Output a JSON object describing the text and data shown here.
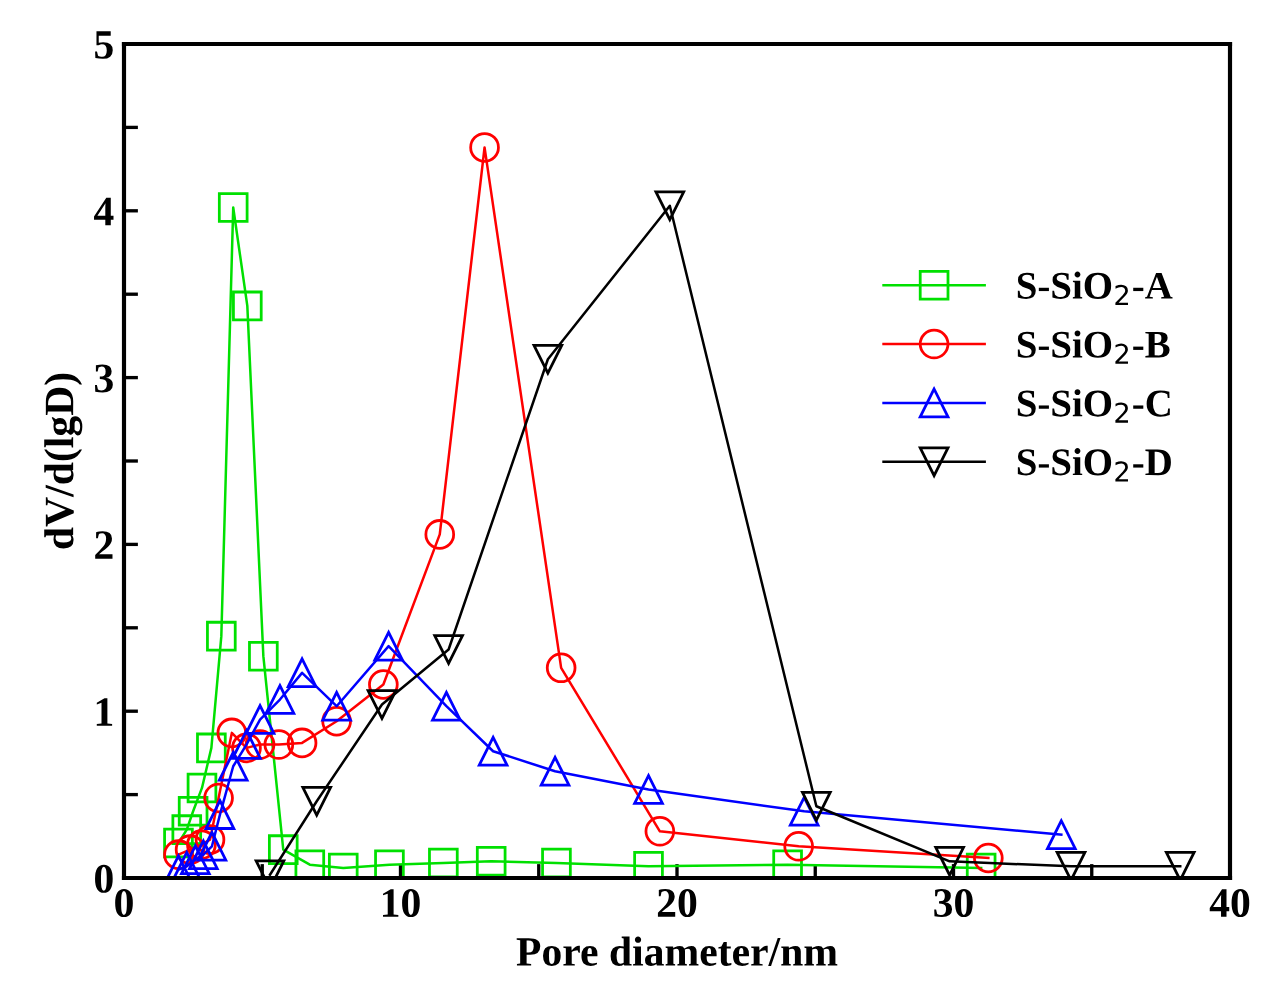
{
  "chart_data": {
    "type": "line",
    "xlabel": "Pore diameter/nm",
    "ylabel": "dV/d(lgD)",
    "xlim": [
      0,
      40
    ],
    "ylim": [
      0,
      5
    ],
    "xticks": [
      0,
      {
        "value": 5,
        "label": null
      },
      10,
      {
        "value": 15,
        "label": null
      },
      20,
      {
        "value": 25,
        "label": null
      },
      30,
      {
        "value": 35,
        "label": null
      },
      40
    ],
    "yticks": [
      0,
      {
        "value": 0.5,
        "label": null
      },
      1,
      {
        "value": 1.5,
        "label": null
      },
      2,
      {
        "value": 2.5,
        "label": null
      },
      3,
      {
        "value": 3.5,
        "label": null
      },
      4,
      {
        "value": 4.5,
        "label": null
      },
      5
    ],
    "grid": false,
    "legend": "right",
    "line_style": "solid",
    "series": [
      {
        "name": "S-SiO$_{2}$-A",
        "color": "#00e000",
        "marker": "square",
        "x": [
          1.97,
          2.27,
          2.5,
          2.82,
          3.16,
          3.52,
          3.95,
          4.46,
          5.04,
          5.76,
          6.72,
          7.93,
          9.6,
          11.55,
          13.28,
          15.64,
          18.97,
          24.0,
          31.0
        ],
        "values": [
          0.21,
          0.29,
          0.4,
          0.54,
          0.78,
          1.45,
          4.02,
          3.43,
          1.33,
          0.17,
          0.08,
          0.06,
          0.08,
          0.09,
          0.1,
          0.09,
          0.07,
          0.08,
          0.06
        ]
      },
      {
        "name": "S-SiO$_{2}$-B",
        "color": "#ff0000",
        "marker": "circle",
        "x": [
          1.97,
          2.39,
          2.8,
          3.11,
          3.42,
          3.9,
          4.43,
          4.92,
          5.6,
          6.44,
          7.69,
          9.38,
          11.42,
          13.04,
          15.81,
          19.38,
          24.4,
          31.26
        ],
        "values": [
          0.14,
          0.17,
          0.2,
          0.23,
          0.48,
          0.87,
          0.78,
          0.8,
          0.8,
          0.81,
          0.94,
          1.16,
          2.06,
          4.38,
          1.26,
          0.28,
          0.19,
          0.12
        ]
      },
      {
        "name": "S-SiO$_{2}$-C",
        "color": "#0000ff",
        "marker": "triangle",
        "x": [
          1.97,
          2.27,
          2.58,
          2.87,
          3.18,
          3.47,
          3.95,
          4.43,
          4.92,
          5.64,
          6.44,
          7.69,
          9.57,
          11.66,
          13.35,
          15.59,
          18.97,
          24.6,
          33.9
        ],
        "values": [
          0.05,
          0.07,
          0.11,
          0.14,
          0.19,
          0.38,
          0.67,
          0.8,
          0.95,
          1.07,
          1.23,
          1.03,
          1.39,
          1.03,
          0.76,
          0.64,
          0.53,
          0.4,
          0.26
        ]
      },
      {
        "name": "S-SiO$_{2}$-D",
        "color": "#000000",
        "marker": "triangle_down",
        "x": [
          5.28,
          6.97,
          9.33,
          11.74,
          15.33,
          19.74,
          25.04,
          29.86,
          34.25,
          38.2
        ],
        "values": [
          0.02,
          0.46,
          1.04,
          1.37,
          3.11,
          4.03,
          0.43,
          0.1,
          0.07,
          0.07
        ]
      }
    ]
  }
}
